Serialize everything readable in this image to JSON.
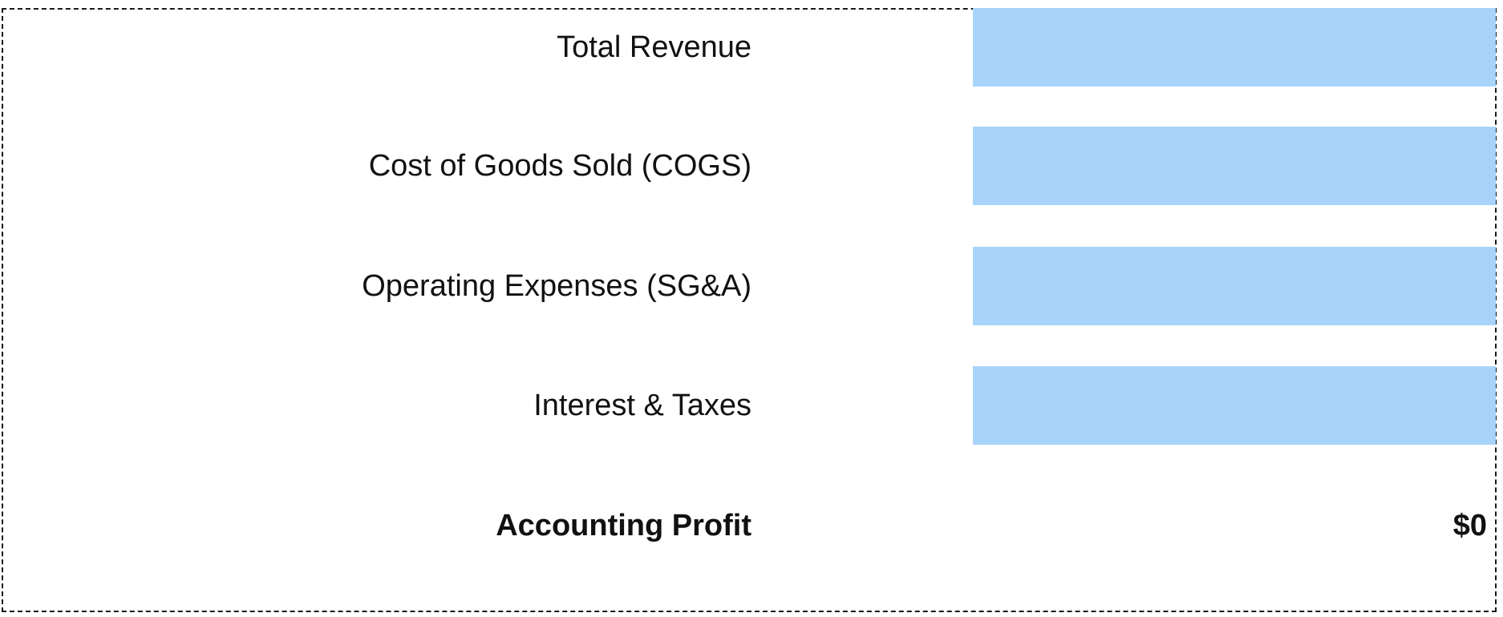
{
  "rows": [
    {
      "label": "Total Revenue",
      "value": ""
    },
    {
      "label": "Cost of Goods Sold (COGS)",
      "value": ""
    },
    {
      "label": "Operating Expenses (SG&A)",
      "value": ""
    },
    {
      "label": "Interest & Taxes",
      "value": ""
    }
  ],
  "result": {
    "label": "Accounting Profit",
    "value": "$0"
  },
  "colors": {
    "input_fill": "#a8d4fb",
    "border": "#1a1a1a"
  }
}
